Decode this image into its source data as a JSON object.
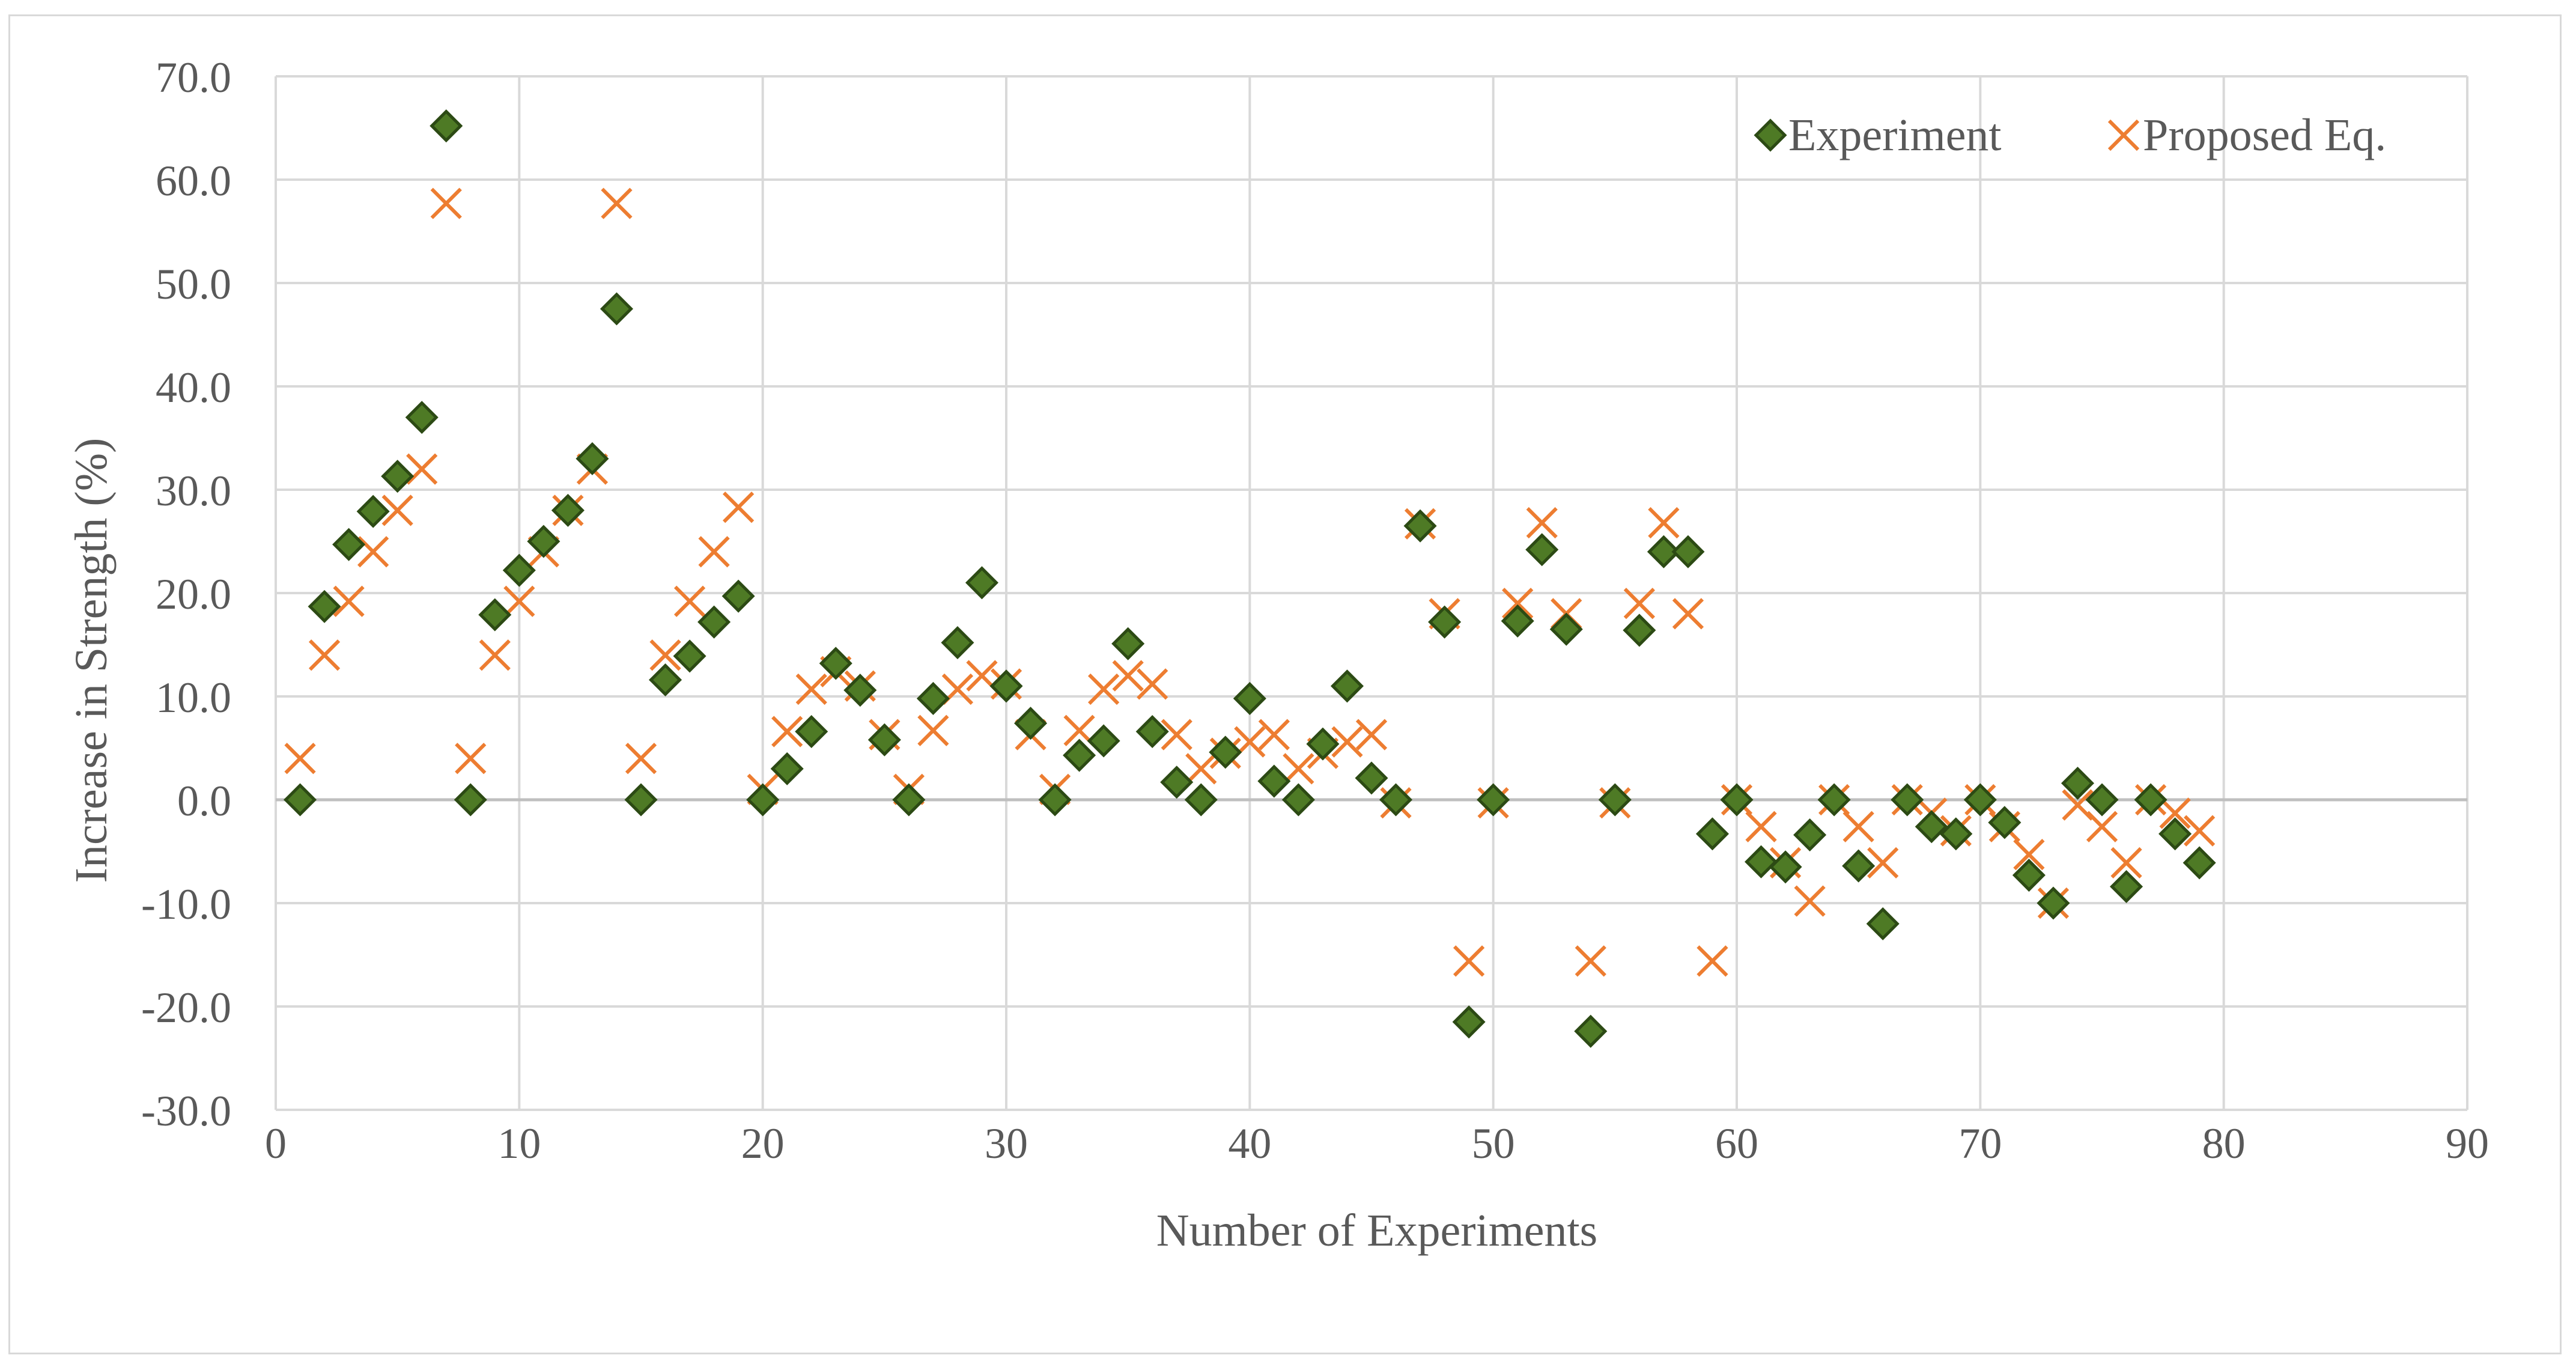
{
  "chart_data": {
    "type": "scatter",
    "title": "",
    "xlabel": "Number of Experiments",
    "ylabel": "Increase in Strength (%)",
    "xlim": [
      0,
      90
    ],
    "ylim": [
      -30,
      70
    ],
    "x_ticks": [
      0,
      10,
      20,
      30,
      40,
      50,
      60,
      70,
      80,
      90
    ],
    "y_ticks": [
      70,
      60,
      50,
      40,
      30,
      20,
      10,
      0,
      -10,
      -20,
      -30
    ],
    "x_tick_labels": [
      "0",
      "10",
      "20",
      "30",
      "40",
      "50",
      "60",
      "70",
      "80",
      "90"
    ],
    "y_tick_labels": [
      "70.0",
      "60.0",
      "50.0",
      "40.0",
      "30.0",
      "20.0",
      "10.0",
      "0.0",
      "-10.0",
      "-20.0",
      "-30.0"
    ],
    "grid": true,
    "legend_position": "top-right",
    "colors": {
      "experiment_fill": "#4e7a25",
      "experiment_stroke": "#2c4a14",
      "proposed": "#ed7d31",
      "grid": "#d9d9d9",
      "axis": "#bfbfbf",
      "text": "#595959"
    },
    "series": [
      {
        "name": "Experiment",
        "marker": "diamond",
        "x": [
          1,
          2,
          3,
          4,
          5,
          6,
          7,
          8,
          9,
          10,
          11,
          12,
          13,
          14,
          15,
          16,
          17,
          18,
          19,
          20,
          21,
          22,
          23,
          24,
          25,
          26,
          27,
          28,
          29,
          30,
          31,
          32,
          33,
          34,
          35,
          36,
          37,
          38,
          39,
          40,
          41,
          42,
          43,
          44,
          45,
          46,
          47,
          48,
          49,
          50,
          51,
          52,
          53,
          54,
          55,
          56,
          57,
          58,
          59,
          60,
          61,
          62,
          63,
          64,
          65,
          66,
          67,
          68,
          69,
          70,
          71,
          72,
          73,
          74,
          75,
          76,
          77,
          78,
          79
        ],
        "y": [
          0.0,
          18.7,
          24.7,
          27.9,
          31.3,
          37.0,
          65.2,
          0.0,
          17.9,
          22.2,
          25.0,
          28.0,
          33.0,
          47.5,
          0.0,
          11.6,
          13.9,
          17.2,
          19.7,
          0.0,
          3.0,
          6.6,
          13.2,
          10.6,
          5.8,
          0.0,
          9.8,
          15.2,
          21.0,
          11.0,
          7.4,
          0.0,
          4.3,
          5.7,
          15.1,
          6.6,
          1.7,
          0.0,
          4.6,
          9.8,
          1.8,
          0.0,
          5.4,
          11.0,
          2.1,
          0.0,
          26.5,
          17.2,
          -21.5,
          0.0,
          17.3,
          24.2,
          16.5,
          -22.4,
          0.0,
          16.4,
          24.0,
          24.0,
          -3.3,
          0.0,
          -6.0,
          -6.5,
          -3.4,
          0.0,
          -6.4,
          -12.0,
          0.0,
          -2.6,
          -3.3,
          0.0,
          -2.2,
          -7.3,
          -10.0,
          1.6,
          0.0,
          -8.4,
          0.0,
          -3.3,
          -6.1
        ]
      },
      {
        "name": "Proposed Eq.",
        "marker": "x",
        "x": [
          1,
          2,
          3,
          4,
          5,
          6,
          7,
          8,
          9,
          10,
          11,
          12,
          13,
          14,
          15,
          16,
          17,
          18,
          19,
          20,
          21,
          22,
          23,
          24,
          25,
          26,
          27,
          28,
          29,
          30,
          31,
          32,
          33,
          34,
          35,
          36,
          37,
          38,
          39,
          40,
          41,
          42,
          43,
          44,
          45,
          46,
          47,
          48,
          49,
          50,
          51,
          52,
          53,
          54,
          55,
          56,
          57,
          58,
          59,
          60,
          61,
          62,
          63,
          64,
          65,
          66,
          67,
          68,
          69,
          70,
          71,
          72,
          73,
          74,
          75,
          76,
          77,
          78,
          79
        ],
        "y": [
          4.0,
          14.0,
          19.2,
          24.0,
          28.0,
          32.0,
          57.7,
          4.0,
          14.0,
          19.2,
          24.0,
          28.0,
          32.0,
          57.7,
          4.0,
          14.0,
          19.2,
          24.0,
          28.3,
          1.0,
          6.6,
          10.7,
          12.4,
          11.0,
          6.3,
          1.0,
          6.7,
          10.7,
          12.0,
          11.2,
          6.3,
          1.0,
          6.7,
          10.7,
          12.0,
          11.2,
          6.3,
          3.0,
          4.5,
          5.6,
          6.3,
          3.0,
          4.5,
          5.6,
          6.3,
          -0.3,
          26.7,
          18.0,
          -15.6,
          -0.3,
          19.0,
          26.8,
          18.0,
          -15.6,
          -0.3,
          19.0,
          26.8,
          18.0,
          -15.6,
          0.0,
          -2.6,
          -6.1,
          -9.8,
          0.0,
          -2.6,
          -6.1,
          0.0,
          -1.3,
          -3.0,
          0.0,
          -2.6,
          -5.3,
          -10.0,
          -0.5,
          -2.6,
          -6.1,
          0.0,
          -1.3,
          -3.0
        ]
      }
    ]
  }
}
